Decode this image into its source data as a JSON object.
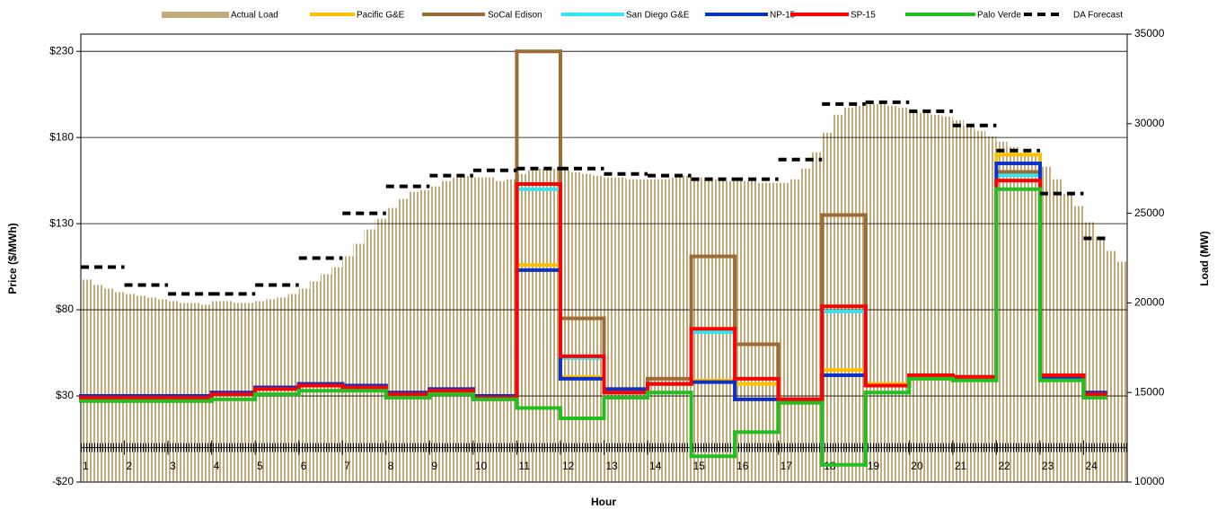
{
  "chart_data": {
    "type": "line",
    "x_label": "Hour",
    "y_label": "Price ($/MWh)",
    "y2_label": "Load (MW)",
    "xlim": [
      1,
      25
    ],
    "xticks": [
      1,
      2,
      3,
      4,
      5,
      6,
      7,
      8,
      9,
      10,
      11,
      12,
      13,
      14,
      15,
      16,
      17,
      18,
      19,
      20,
      21,
      22,
      23,
      24
    ],
    "ylim": [
      -20,
      240
    ],
    "yticks": [
      {
        "value": -20,
        "label": "-$20"
      },
      {
        "value": 30,
        "label": "$30"
      },
      {
        "value": 80,
        "label": "$80"
      },
      {
        "value": 130,
        "label": "$130"
      },
      {
        "value": 180,
        "label": "$180"
      },
      {
        "value": 230,
        "label": "$230"
      }
    ],
    "y2lim": [
      10000,
      35000
    ],
    "y2ticks": [
      10000,
      15000,
      20000,
      25000,
      30000,
      35000
    ],
    "grid": true,
    "legend": "top",
    "x": [
      1,
      2,
      3,
      4,
      5,
      6,
      7,
      8,
      9,
      10,
      11,
      12,
      13,
      14,
      15,
      16,
      17,
      18,
      19,
      20,
      21,
      22,
      23,
      24
    ],
    "load": {
      "name": "Actual Load",
      "color": "#c2ab7a",
      "axis": "y2",
      "x": [
        1,
        1.25,
        1.5,
        1.75,
        2,
        2.25,
        2.5,
        2.75,
        3,
        3.25,
        3.5,
        3.75,
        4,
        4.25,
        4.5,
        4.75,
        5,
        5.25,
        5.5,
        5.75,
        6,
        6.25,
        6.5,
        6.75,
        7,
        7.25,
        7.5,
        7.75,
        8,
        8.25,
        8.5,
        8.75,
        9,
        9.25,
        9.5,
        9.75,
        10,
        10.25,
        10.5,
        10.75,
        11,
        11.25,
        11.5,
        11.75,
        12,
        12.25,
        12.5,
        12.75,
        13,
        13.25,
        13.5,
        13.75,
        14,
        14.25,
        14.5,
        14.75,
        15,
        15.25,
        15.5,
        15.75,
        16,
        16.25,
        16.5,
        16.75,
        17,
        17.25,
        17.5,
        17.75,
        18,
        18.25,
        18.5,
        18.75,
        19,
        19.25,
        19.5,
        19.75,
        20,
        20.25,
        20.5,
        20.75,
        21,
        21.25,
        21.5,
        21.75,
        22,
        22.25,
        22.5,
        22.75,
        23,
        23.25,
        23.5,
        23.75,
        24,
        24.25,
        24.5,
        24.75
      ],
      "values": [
        21300,
        21000,
        20800,
        20600,
        20500,
        20400,
        20300,
        20200,
        20100,
        20000,
        20000,
        19900,
        20100,
        20100,
        20000,
        20000,
        20100,
        20200,
        20300,
        20500,
        20800,
        21200,
        21600,
        22000,
        22600,
        23300,
        24100,
        24700,
        25300,
        25800,
        26200,
        26300,
        26500,
        26800,
        27000,
        27100,
        27000,
        27000,
        26800,
        26900,
        27200,
        27400,
        27500,
        27500,
        27400,
        27300,
        27200,
        27100,
        27000,
        27000,
        26900,
        26900,
        26900,
        26900,
        27000,
        27100,
        27000,
        26900,
        26900,
        26800,
        26800,
        26800,
        26700,
        26700,
        26700,
        26900,
        27500,
        28400,
        29500,
        30500,
        30900,
        31000,
        31100,
        31100,
        31000,
        30900,
        30700,
        30600,
        30500,
        30400,
        30200,
        29900,
        29600,
        29300,
        29000,
        28700,
        28400,
        28200,
        27600,
        26900,
        26100,
        25400,
        24500,
        23700,
        22900,
        22300
      ]
    },
    "series": [
      {
        "name": "Pacific G&E",
        "color": "#ffc000",
        "values": [
          30,
          30,
          30,
          32,
          35,
          37,
          36,
          32,
          34,
          30,
          106,
          41,
          34,
          37,
          39,
          37,
          28,
          45,
          37,
          42,
          41,
          170,
          41,
          32
        ]
      },
      {
        "name": "SoCal Edison",
        "color": "#9c6b36",
        "values": [
          29,
          29,
          29,
          31,
          34,
          36,
          35,
          31,
          33,
          29,
          230,
          75,
          32,
          40,
          111,
          60,
          28,
          135,
          36,
          42,
          41,
          160,
          42,
          31
        ]
      },
      {
        "name": "San Diego G&E",
        "color": "#33e5f0",
        "values": [
          29,
          29,
          29,
          31,
          34,
          36,
          35,
          31,
          33,
          29,
          150,
          52,
          32,
          37,
          67,
          40,
          28,
          79,
          36,
          42,
          41,
          158,
          42,
          31
        ]
      },
      {
        "name": "NP-15",
        "color": "#0a32c8",
        "values": [
          30,
          30,
          30,
          32,
          35,
          37,
          36,
          32,
          34,
          30,
          103,
          40,
          34,
          37,
          38,
          28,
          28,
          42,
          36,
          42,
          41,
          165,
          41,
          32
        ]
      },
      {
        "name": "SP-15",
        "color": "#ff0000",
        "values": [
          29,
          29,
          29,
          31,
          34,
          36,
          35,
          31,
          33,
          29,
          153,
          53,
          32,
          37,
          69,
          40,
          28,
          82,
          36,
          42,
          41,
          155,
          42,
          31
        ]
      },
      {
        "name": "Palo Verde",
        "color": "#1fc01f",
        "values": [
          27,
          27,
          27,
          28,
          31,
          33,
          33,
          29,
          31,
          28,
          23,
          17,
          29,
          32,
          -5,
          9,
          26,
          -10,
          32,
          40,
          39,
          150,
          39,
          29
        ]
      }
    ],
    "forecast": {
      "name": "DA Forecast",
      "color": "#000000",
      "axis": "y2",
      "values": [
        22000,
        21000,
        20500,
        20500,
        21000,
        22500,
        25000,
        26500,
        27100,
        27400,
        27500,
        27500,
        27200,
        27100,
        26900,
        26900,
        28000,
        31100,
        31200,
        30700,
        29900,
        28500,
        26100,
        23600
      ]
    }
  }
}
